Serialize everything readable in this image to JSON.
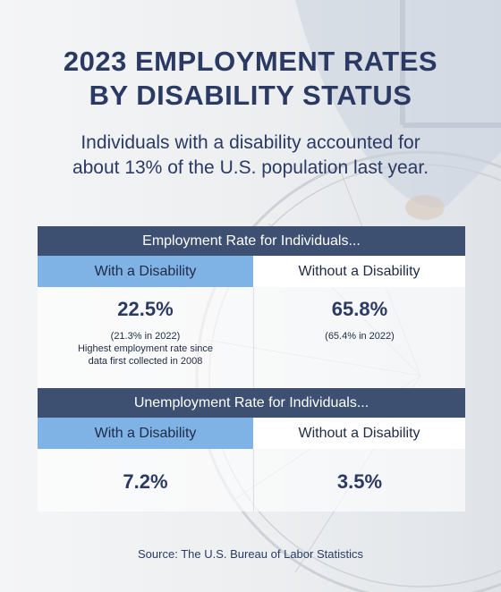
{
  "header": {
    "title_line1": "2023 EMPLOYMENT RATES",
    "title_line2": "BY DISABILITY STATUS",
    "subtitle_line1": "Individuals with a disability accounted for",
    "subtitle_line2": "about 13% of the U.S. population last year."
  },
  "employment": {
    "header": "Employment Rate for Individuals...",
    "col_with": "With a Disability",
    "col_without": "Without a Disability",
    "with_value": "22.5%",
    "with_note1": "(21.3% in 2022)",
    "with_note2": "Highest employment rate since",
    "with_note3": "data first collected in 2008",
    "without_value": "65.8%",
    "without_note1": "(65.4% in 2022)"
  },
  "unemployment": {
    "header": "Unemployment Rate for Individuals...",
    "col_with": "With a Disability",
    "col_without": "Without a Disability",
    "with_value": "7.2%",
    "without_value": "3.5%"
  },
  "source": "Source: The U.S. Bureau of Labor Statistics",
  "colors": {
    "title": "#2b3a63",
    "header_band": "#3d5072",
    "highlight_col": "#7fb3e6"
  },
  "chart_data": {
    "type": "table",
    "columns": [
      "With a Disability",
      "Without a Disability"
    ],
    "rows": [
      {
        "name": "Employment Rate for Individuals...",
        "values": [
          22.5,
          65.8
        ]
      },
      {
        "name": "Unemployment Rate for Individuals...",
        "values": [
          7.2,
          3.5
        ]
      }
    ],
    "prior_year_employment": [
      21.3,
      65.4
    ],
    "title": "2023 EMPLOYMENT RATES BY DISABILITY STATUS"
  }
}
